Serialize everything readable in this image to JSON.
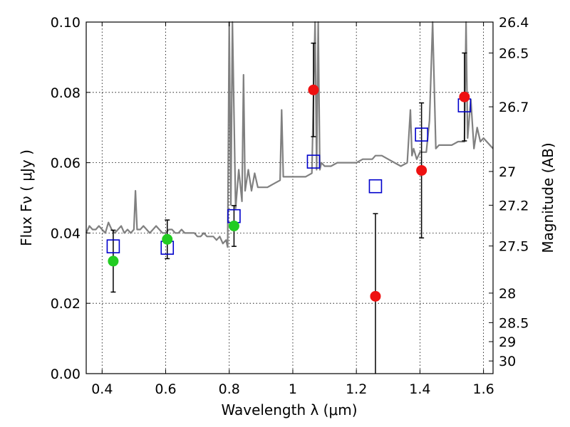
{
  "chart_data": {
    "type": "scatter",
    "xlabel": "Wavelength  λ (μm)",
    "ylabel": "Flux  Fν  ( μJy )",
    "ylabel_right": "Magnitude (AB)",
    "xlim": [
      0.35,
      1.63
    ],
    "ylim": [
      0.0,
      0.1
    ],
    "grid": true,
    "x_ticks": [
      0.4,
      0.6,
      0.8,
      1.0,
      1.2,
      1.4,
      1.6
    ],
    "x_tick_labels": [
      "0.4",
      "0.6",
      "0.8",
      "1",
      "1.2",
      "1.4",
      "1.6"
    ],
    "y_ticks": [
      0.0,
      0.02,
      0.04,
      0.06,
      0.08,
      0.1
    ],
    "y_tick_labels": [
      "0.00",
      "0.02",
      "0.04",
      "0.06",
      "0.08",
      "0.10"
    ],
    "right_ticks": [
      {
        "label": "26.4",
        "flux": 0.1
      },
      {
        "label": "26.5",
        "flux": 0.0912
      },
      {
        "label": "26.7",
        "flux": 0.0759
      },
      {
        "label": "27",
        "flux": 0.0575
      },
      {
        "label": "27.2",
        "flux": 0.0479
      },
      {
        "label": "27.5",
        "flux": 0.0363
      },
      {
        "label": "28",
        "flux": 0.0229
      },
      {
        "label": "28.5",
        "flux": 0.0145
      },
      {
        "label": "29",
        "flux": 0.0091
      },
      {
        "label": "30",
        "flux": 0.0036
      }
    ],
    "series": [
      {
        "kind": "spectrum",
        "color": "#808080",
        "x": [
          0.35,
          0.36,
          0.37,
          0.38,
          0.39,
          0.4,
          0.41,
          0.42,
          0.43,
          0.44,
          0.45,
          0.46,
          0.47,
          0.48,
          0.49,
          0.5,
          0.505,
          0.51,
          0.52,
          0.53,
          0.54,
          0.55,
          0.56,
          0.57,
          0.58,
          0.59,
          0.6,
          0.61,
          0.62,
          0.63,
          0.64,
          0.65,
          0.66,
          0.67,
          0.68,
          0.69,
          0.7,
          0.71,
          0.72,
          0.73,
          0.74,
          0.75,
          0.76,
          0.77,
          0.78,
          0.79,
          0.795,
          0.8,
          0.805,
          0.81,
          0.82,
          0.83,
          0.84,
          0.845,
          0.85,
          0.86,
          0.87,
          0.88,
          0.89,
          0.9,
          0.92,
          0.94,
          0.96,
          0.965,
          0.97,
          0.98,
          1.0,
          1.02,
          1.04,
          1.06,
          1.07,
          1.075,
          1.08,
          1.085,
          1.09,
          1.1,
          1.12,
          1.14,
          1.16,
          1.18,
          1.2,
          1.22,
          1.24,
          1.25,
          1.26,
          1.28,
          1.3,
          1.32,
          1.34,
          1.36,
          1.37,
          1.375,
          1.38,
          1.39,
          1.4,
          1.42,
          1.43,
          1.44,
          1.45,
          1.46,
          1.48,
          1.5,
          1.52,
          1.54,
          1.545,
          1.55,
          1.56,
          1.57,
          1.58,
          1.59,
          1.6,
          1.62,
          1.63
        ],
        "y": [
          0.04,
          0.042,
          0.041,
          0.041,
          0.042,
          0.041,
          0.04,
          0.043,
          0.041,
          0.04,
          0.041,
          0.042,
          0.04,
          0.041,
          0.04,
          0.041,
          0.052,
          0.041,
          0.041,
          0.042,
          0.041,
          0.04,
          0.041,
          0.042,
          0.041,
          0.04,
          0.04,
          0.041,
          0.041,
          0.04,
          0.04,
          0.041,
          0.04,
          0.04,
          0.04,
          0.04,
          0.039,
          0.039,
          0.04,
          0.039,
          0.039,
          0.039,
          0.038,
          0.039,
          0.037,
          0.038,
          0.036,
          0.1,
          0.048,
          0.1,
          0.047,
          0.058,
          0.049,
          0.085,
          0.052,
          0.058,
          0.052,
          0.057,
          0.053,
          0.053,
          0.053,
          0.054,
          0.055,
          0.075,
          0.056,
          0.056,
          0.056,
          0.056,
          0.056,
          0.057,
          0.1,
          0.058,
          0.1,
          0.058,
          0.06,
          0.059,
          0.059,
          0.06,
          0.06,
          0.06,
          0.06,
          0.061,
          0.061,
          0.061,
          0.062,
          0.062,
          0.061,
          0.06,
          0.059,
          0.06,
          0.075,
          0.062,
          0.064,
          0.061,
          0.063,
          0.063,
          0.072,
          0.1,
          0.064,
          0.065,
          0.065,
          0.065,
          0.066,
          0.066,
          0.1,
          0.067,
          0.078,
          0.064,
          0.07,
          0.066,
          0.067,
          0.065,
          0.064
        ]
      },
      {
        "kind": "points",
        "color": "#22cc22",
        "marker": "circle",
        "points": [
          {
            "x": 0.435,
            "y": 0.032,
            "err": 0.0088
          },
          {
            "x": 0.605,
            "y": 0.0382,
            "err": 0.0055
          },
          {
            "x": 0.815,
            "y": 0.042,
            "err": 0.0058
          }
        ]
      },
      {
        "kind": "points",
        "color": "#ee1111",
        "marker": "circle",
        "points": [
          {
            "x": 1.065,
            "y": 0.0807,
            "err": 0.0133
          },
          {
            "x": 1.26,
            "y": 0.022,
            "err": 0.0235
          },
          {
            "x": 1.405,
            "y": 0.0578,
            "err": 0.0192
          },
          {
            "x": 1.54,
            "y": 0.0787,
            "err": 0.0125
          }
        ]
      },
      {
        "kind": "model",
        "color": "#0000cc",
        "marker": "open-square",
        "points": [
          {
            "x": 0.435,
            "y": 0.0362
          },
          {
            "x": 0.605,
            "y": 0.0358
          },
          {
            "x": 0.815,
            "y": 0.0448
          },
          {
            "x": 1.065,
            "y": 0.0603
          },
          {
            "x": 1.26,
            "y": 0.0533
          },
          {
            "x": 1.405,
            "y": 0.068
          },
          {
            "x": 1.54,
            "y": 0.0763
          }
        ]
      }
    ]
  }
}
